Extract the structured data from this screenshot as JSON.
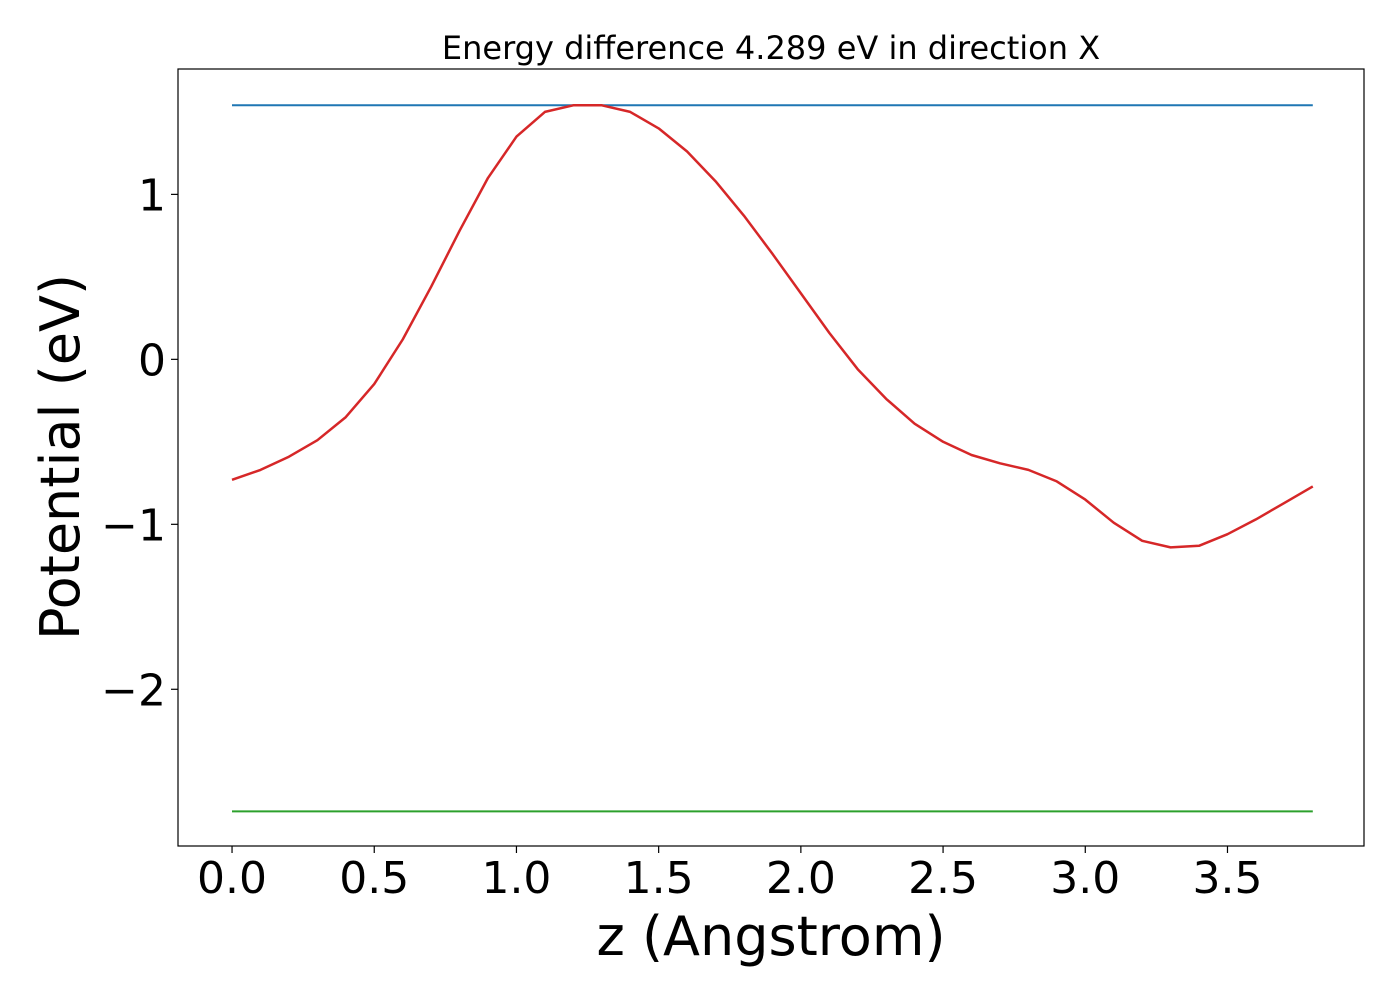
{
  "chart_data": {
    "type": "line",
    "title": "Energy difference 4.289 eV in direction X",
    "xlabel": "z (Angstrom)",
    "ylabel": "Potential (eV)",
    "xlim": [
      -0.19,
      3.98
    ],
    "ylim": [
      -2.95,
      1.76
    ],
    "x_ticks": [
      0.0,
      0.5,
      1.0,
      1.5,
      2.0,
      2.5,
      3.0,
      3.5
    ],
    "x_tick_labels": [
      "0.0",
      "0.5",
      "1.0",
      "1.5",
      "2.0",
      "2.5",
      "3.0",
      "3.5"
    ],
    "y_ticks": [
      -2,
      -1,
      0,
      1
    ],
    "y_tick_labels": [
      "−2",
      "−1",
      "0",
      "1"
    ],
    "grid": false,
    "series": [
      {
        "color": "#1f77b4",
        "x": [
          0.0,
          3.8
        ],
        "y": [
          1.54,
          1.54
        ]
      },
      {
        "color": "#2ca02c",
        "x": [
          0.0,
          3.8
        ],
        "y": [
          -2.74,
          -2.74
        ]
      },
      {
        "color": "#d62728",
        "x": [
          0.0,
          0.1,
          0.2,
          0.3,
          0.4,
          0.5,
          0.6,
          0.7,
          0.8,
          0.9,
          1.0,
          1.1,
          1.2,
          1.3,
          1.4,
          1.5,
          1.6,
          1.7,
          1.8,
          1.9,
          2.0,
          2.1,
          2.2,
          2.3,
          2.4,
          2.5,
          2.6,
          2.7,
          2.8,
          2.9,
          3.0,
          3.1,
          3.2,
          3.3,
          3.4,
          3.5,
          3.6,
          3.7,
          3.8
        ],
        "y": [
          -0.73,
          -0.67,
          -0.59,
          -0.49,
          -0.35,
          -0.15,
          0.12,
          0.44,
          0.78,
          1.1,
          1.35,
          1.5,
          1.54,
          1.54,
          1.5,
          1.4,
          1.26,
          1.08,
          0.87,
          0.64,
          0.4,
          0.16,
          -0.06,
          -0.24,
          -0.39,
          -0.5,
          -0.58,
          -0.63,
          -0.67,
          -0.74,
          -0.85,
          -0.99,
          -1.1,
          -1.14,
          -1.13,
          -1.06,
          -0.97,
          -0.87,
          -0.77
        ]
      }
    ]
  }
}
